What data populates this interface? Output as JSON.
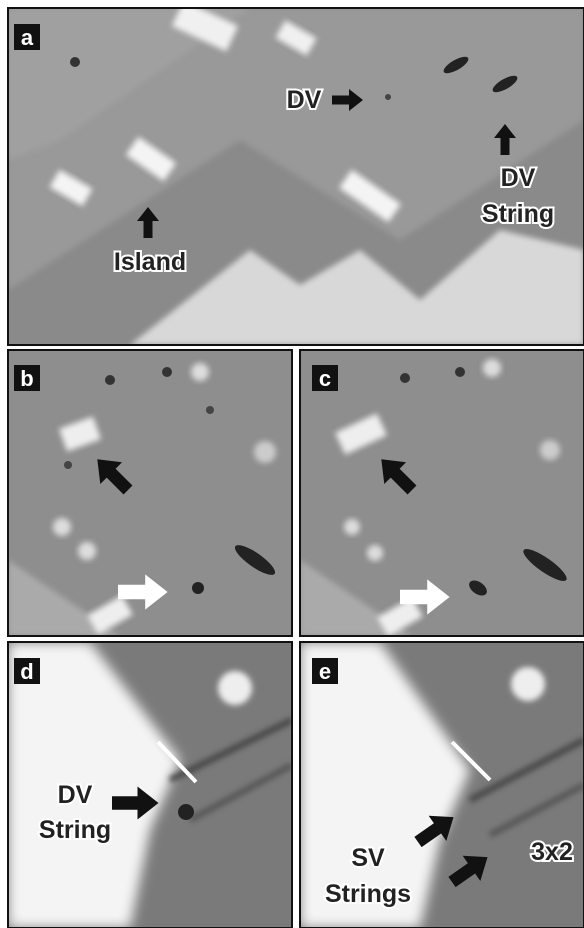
{
  "panels": [
    {
      "label": "a",
      "annotations": [
        {
          "lines": [
            "DV"
          ]
        },
        {
          "lines": [
            "DV",
            "String"
          ]
        },
        {
          "lines": [
            "Island"
          ]
        }
      ]
    },
    {
      "label": "b"
    },
    {
      "label": "c"
    },
    {
      "label": "d",
      "annotations": [
        {
          "lines": [
            "DV",
            "String"
          ]
        }
      ]
    },
    {
      "label": "e",
      "annotations": [
        {
          "lines": [
            "SV",
            "Strings"
          ]
        },
        {
          "lines": [
            "3x2"
          ]
        }
      ]
    }
  ]
}
